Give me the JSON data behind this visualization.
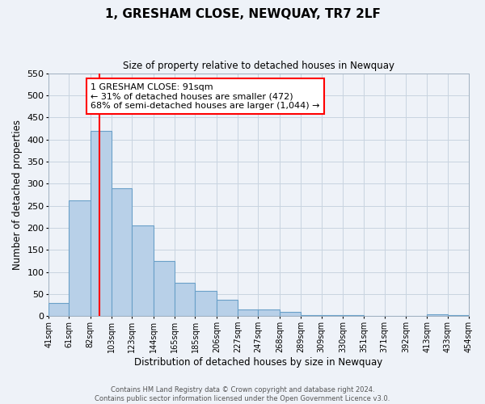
{
  "title": "1, GRESHAM CLOSE, NEWQUAY, TR7 2LF",
  "subtitle": "Size of property relative to detached houses in Newquay",
  "xlabel": "Distribution of detached houses by size in Newquay",
  "ylabel": "Number of detached properties",
  "bin_labels": [
    "41sqm",
    "61sqm",
    "82sqm",
    "103sqm",
    "123sqm",
    "144sqm",
    "165sqm",
    "185sqm",
    "206sqm",
    "227sqm",
    "247sqm",
    "268sqm",
    "289sqm",
    "309sqm",
    "330sqm",
    "351sqm",
    "371sqm",
    "392sqm",
    "413sqm",
    "433sqm",
    "454sqm"
  ],
  "bar_values": [
    30,
    263,
    420,
    290,
    206,
    125,
    75,
    57,
    38,
    15,
    15,
    10,
    3,
    3,
    3,
    1,
    1,
    1,
    5,
    3
  ],
  "bar_color": "#b8d0e8",
  "bar_edge_color": "#6aa0c8",
  "bar_edge_width": 0.8,
  "ylim": [
    0,
    550
  ],
  "yticks": [
    0,
    50,
    100,
    150,
    200,
    250,
    300,
    350,
    400,
    450,
    500,
    550
  ],
  "vline_color": "red",
  "vline_x": 91,
  "annotation_text": "1 GRESHAM CLOSE: 91sqm\n← 31% of detached houses are smaller (472)\n68% of semi-detached houses are larger (1,044) →",
  "annotation_box_color": "white",
  "annotation_box_edge_color": "red",
  "footer_line1": "Contains HM Land Registry data © Crown copyright and database right 2024.",
  "footer_line2": "Contains public sector information licensed under the Open Government Licence v3.0.",
  "bg_color": "#eef2f8",
  "plot_bg_color": "#eef2f8",
  "grid_color": "#c8d4e0"
}
